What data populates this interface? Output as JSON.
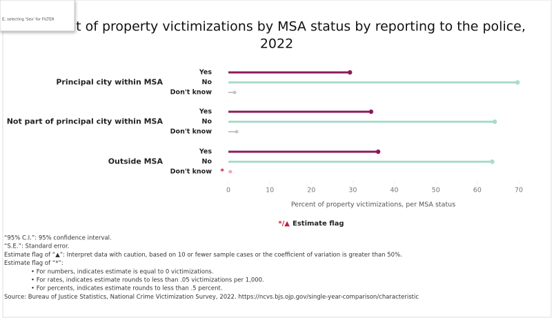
{
  "tooltip": "E; selecting 'Sex' for FILTER",
  "chart_data": {
    "type": "lollipop",
    "title": [
      "nt of property victimizations by MSA status by reporting to the police,",
      "2022"
    ],
    "categories": [
      "Principal city within MSA",
      "Not part of principal city within MSA",
      "Outside MSA"
    ],
    "series": [
      {
        "name": "Yes",
        "color": "#8b1a5a",
        "values": [
          29.3,
          34.4,
          36.1
        ]
      },
      {
        "name": "No",
        "color": "#a9dcc9",
        "values": [
          69.7,
          64.2,
          63.6
        ]
      },
      {
        "name": "Don't know",
        "color": "#c4c4c4",
        "values": [
          1.5,
          2,
          0.5
        ],
        "flags": [
          null,
          null,
          "*"
        ],
        "flag_color": "#f2a7bd"
      }
    ],
    "xlim": [
      0,
      70
    ],
    "xticks": [
      0,
      10,
      20,
      30,
      40,
      50,
      60,
      70
    ],
    "xlabel": "Percent of property victimizations, per MSA status",
    "legend": {
      "symbol": "*/▲",
      "label": "Estimate flag"
    }
  },
  "notes": [
    "“95% C.I.”: 95% confidence interval.",
    "“S.E.”: Standard error.",
    "Estimate flag of “▲”: Interpret data with caution, based on 10 or fewer sample cases or the coefficient of variation is greater than 50%.",
    "Estimate flag of “*”:",
    "• For numbers, indicates estimate is equal to 0 victimizations.",
    "• For rates, indicates estimate rounds to less than .05 victimizations per 1,000.",
    "• For percents, indicates estimate rounds to less than .5 percent.",
    "Source: Bureau of Justice Statistics, National Crime Victimization Survey, 2022. https://ncvs.bjs.ojp.gov/single-year-comparison/characteristic"
  ]
}
